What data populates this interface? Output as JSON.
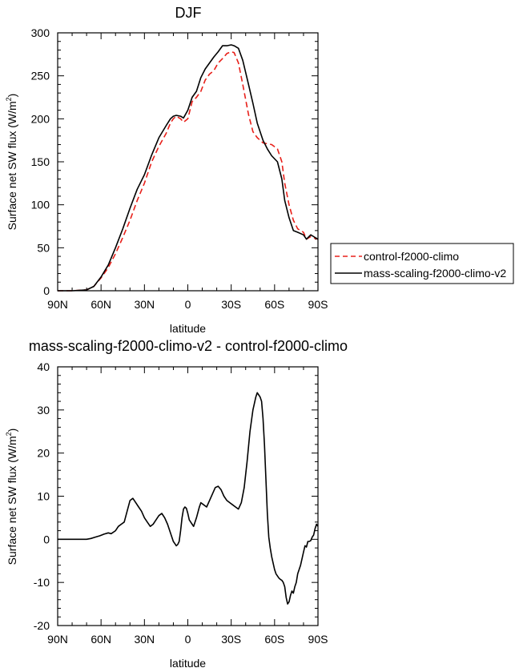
{
  "chart_data": [
    {
      "type": "line",
      "title": "DJF",
      "xlabel": "latitude",
      "ylabel": "Surface net SW flux (W/m²)",
      "ylabel_main": "Surface net SW flux (W/m",
      "ylabel_sup": "2",
      "ylabel_close": ")",
      "xlim": [
        90,
        -90
      ],
      "ylim": [
        0,
        300
      ],
      "xticks": [
        90,
        60,
        30,
        0,
        -30,
        -60,
        -90
      ],
      "xtick_labels": [
        "90N",
        "60N",
        "30N",
        "0",
        "30S",
        "60S",
        "90S"
      ],
      "yticks": [
        0,
        50,
        100,
        150,
        200,
        250,
        300
      ],
      "ytick_labels": [
        "0",
        "50",
        "100",
        "150",
        "200",
        "250",
        "300"
      ],
      "legend": {
        "position": "right",
        "entries": [
          "control-f2000-climo",
          "mass-scaling-f2000-climo-v2"
        ]
      },
      "series": [
        {
          "name": "control-f2000-climo",
          "color": "#e8201a",
          "dash": "dashed",
          "x": [
            90,
            80,
            70,
            65,
            60,
            55,
            50,
            45,
            40,
            35,
            30,
            25,
            20,
            15,
            12,
            10,
            8,
            5,
            3,
            0,
            -3,
            -6,
            -9,
            -12,
            -15,
            -18,
            -21,
            -24,
            -27,
            -30,
            -32,
            -35,
            -38,
            -42,
            -45,
            -48,
            -52,
            -55,
            -58,
            -62,
            -65,
            -67,
            -70,
            -73,
            -76,
            -80,
            -82,
            -85,
            -88,
            -90
          ],
          "y": [
            0,
            0,
            1,
            5,
            15,
            27,
            43,
            62,
            82,
            105,
            125,
            150,
            168,
            183,
            195,
            200,
            203,
            200,
            196,
            200,
            220,
            225,
            232,
            245,
            252,
            256,
            265,
            270,
            276,
            278,
            277,
            265,
            240,
            205,
            185,
            178,
            172,
            171,
            170,
            165,
            150,
            125,
            100,
            82,
            72,
            68,
            60,
            63,
            61,
            60
          ]
        },
        {
          "name": "mass-scaling-f2000-climo-v2",
          "color": "#000000",
          "dash": "solid",
          "x": [
            90,
            80,
            70,
            65,
            60,
            55,
            50,
            45,
            40,
            35,
            30,
            25,
            20,
            15,
            12,
            10,
            8,
            5,
            3,
            0,
            -3,
            -6,
            -9,
            -12,
            -15,
            -18,
            -21,
            -24,
            -27,
            -30,
            -32,
            -35,
            -38,
            -42,
            -45,
            -48,
            -52,
            -55,
            -58,
            -62,
            -65,
            -67,
            -70,
            -73,
            -76,
            -80,
            -82,
            -85,
            -88,
            -90
          ],
          "y": [
            0,
            0,
            1,
            5,
            16,
            30,
            50,
            72,
            96,
            118,
            135,
            158,
            178,
            192,
            200,
            203,
            204,
            203,
            201,
            210,
            225,
            232,
            248,
            258,
            265,
            272,
            278,
            285,
            285,
            286,
            285,
            282,
            268,
            240,
            218,
            195,
            175,
            165,
            157,
            150,
            130,
            105,
            85,
            70,
            68,
            65,
            60,
            65,
            62,
            60
          ]
        }
      ]
    },
    {
      "type": "line",
      "title": "mass-scaling-f2000-climo-v2 - control-f2000-climo",
      "xlabel": "latitude",
      "ylabel": "Surface net SW flux (W/m²)",
      "ylabel_main": "Surface net SW flux (W/m",
      "ylabel_sup": "2",
      "ylabel_close": ")",
      "xlim": [
        90,
        -90
      ],
      "ylim": [
        -20,
        40
      ],
      "xticks": [
        90,
        60,
        30,
        0,
        -30,
        -60,
        -90
      ],
      "xtick_labels": [
        "90N",
        "60N",
        "30N",
        "0",
        "30S",
        "60S",
        "90S"
      ],
      "yticks": [
        -20,
        -10,
        0,
        10,
        20,
        30,
        40
      ],
      "ytick_labels": [
        "-20",
        "-10",
        "0",
        "10",
        "20",
        "30",
        "40"
      ],
      "series": [
        {
          "name": "mass-scaling-f2000-climo-v2 - control-f2000-climo",
          "color": "#000000",
          "dash": "solid",
          "x": [
            90,
            85,
            80,
            75,
            70,
            67,
            64,
            61,
            58,
            55,
            53,
            50,
            48,
            46,
            44,
            42,
            40,
            38,
            36,
            34,
            32,
            30,
            28,
            26,
            24,
            22,
            20,
            18,
            16,
            14,
            12,
            11,
            10,
            9,
            8,
            7,
            6,
            5,
            4,
            3,
            2,
            1,
            0,
            -1,
            -2,
            -3,
            -4,
            -6,
            -8,
            -9,
            -11,
            -13,
            -15,
            -17,
            -19,
            -21,
            -23,
            -25,
            -27,
            -29,
            -31,
            -33,
            -35,
            -37,
            -39,
            -41,
            -43,
            -45,
            -46,
            -47,
            -48,
            -49,
            -50,
            -51,
            -52,
            -53,
            -54,
            -55,
            -56,
            -57,
            -58,
            -59,
            -60,
            -61,
            -62,
            -63,
            -64,
            -65,
            -66,
            -67,
            -68,
            -69,
            -70,
            -71,
            -72,
            -73,
            -74,
            -75,
            -76,
            -77,
            -78,
            -79,
            -80,
            -81,
            -82,
            -83,
            -84,
            -85,
            -86,
            -87,
            -88,
            -89,
            -90
          ],
          "y": [
            0,
            0,
            0,
            0,
            0,
            0.2,
            0.5,
            0.8,
            1.2,
            1.5,
            1.3,
            2.0,
            3.0,
            3.5,
            4.0,
            6.5,
            9.0,
            9.5,
            8.5,
            7.5,
            6.5,
            5.0,
            4.0,
            3.0,
            3.5,
            4.5,
            5.5,
            6.0,
            5.0,
            3.5,
            1.5,
            0.5,
            -0.5,
            -1.0,
            -1.5,
            -1.2,
            -0.5,
            2.0,
            5.0,
            7.0,
            7.5,
            7.2,
            6.0,
            4.5,
            4.0,
            3.5,
            3.0,
            5.0,
            7.5,
            8.5,
            8.0,
            7.5,
            9.0,
            10.5,
            12.0,
            12.3,
            11.5,
            10.0,
            9.0,
            8.5,
            8.0,
            7.5,
            7.0,
            8.5,
            12.0,
            18.0,
            25.0,
            30.0,
            31.5,
            33.0,
            34.0,
            33.5,
            33.0,
            32.0,
            28.0,
            22.0,
            14.0,
            6.0,
            0.5,
            -2.0,
            -4.0,
            -5.5,
            -7.0,
            -8.0,
            -8.5,
            -9.0,
            -9.3,
            -9.5,
            -10.0,
            -11.0,
            -13.5,
            -15.0,
            -14.5,
            -13.0,
            -12.0,
            -12.5,
            -11.0,
            -10.0,
            -8.0,
            -7.0,
            -6.0,
            -4.5,
            -3.0,
            -1.5,
            -1.8,
            -0.5,
            -0.5,
            -0.3,
            0.5,
            1.0,
            2.5,
            3.5,
            3.0
          ]
        }
      ]
    }
  ]
}
